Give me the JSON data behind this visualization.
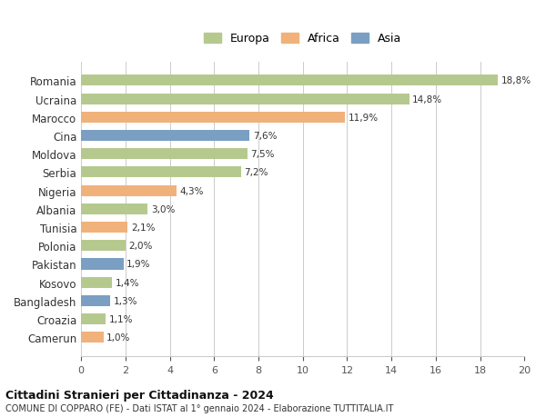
{
  "countries": [
    "Romania",
    "Ucraina",
    "Marocco",
    "Cina",
    "Moldova",
    "Serbia",
    "Nigeria",
    "Albania",
    "Tunisia",
    "Polonia",
    "Pakistan",
    "Kosovo",
    "Bangladesh",
    "Croazia",
    "Camerun"
  ],
  "values": [
    18.8,
    14.8,
    11.9,
    7.6,
    7.5,
    7.2,
    4.3,
    3.0,
    2.1,
    2.0,
    1.9,
    1.4,
    1.3,
    1.1,
    1.0
  ],
  "labels": [
    "18,8%",
    "14,8%",
    "11,9%",
    "7,6%",
    "7,5%",
    "7,2%",
    "4,3%",
    "3,0%",
    "2,1%",
    "2,0%",
    "1,9%",
    "1,4%",
    "1,3%",
    "1,1%",
    "1,0%"
  ],
  "continents": [
    "Europa",
    "Europa",
    "Africa",
    "Asia",
    "Europa",
    "Europa",
    "Africa",
    "Europa",
    "Africa",
    "Europa",
    "Asia",
    "Europa",
    "Asia",
    "Europa",
    "Africa"
  ],
  "colors": {
    "Europa": "#b5c98e",
    "Africa": "#f0b27a",
    "Asia": "#7a9fc2"
  },
  "legend_colors": {
    "Europa": "#b5c98e",
    "Africa": "#f0b27a",
    "Asia": "#7a9fc2"
  },
  "xlim": [
    0,
    20
  ],
  "xticks": [
    0,
    2,
    4,
    6,
    8,
    10,
    12,
    14,
    16,
    18,
    20
  ],
  "title1": "Cittadini Stranieri per Cittadinanza - 2024",
  "title2": "COMUNE DI COPPARO (FE) - Dati ISTAT al 1° gennaio 2024 - Elaborazione TUTTITALIA.IT",
  "background_color": "#ffffff",
  "grid_color": "#cccccc"
}
